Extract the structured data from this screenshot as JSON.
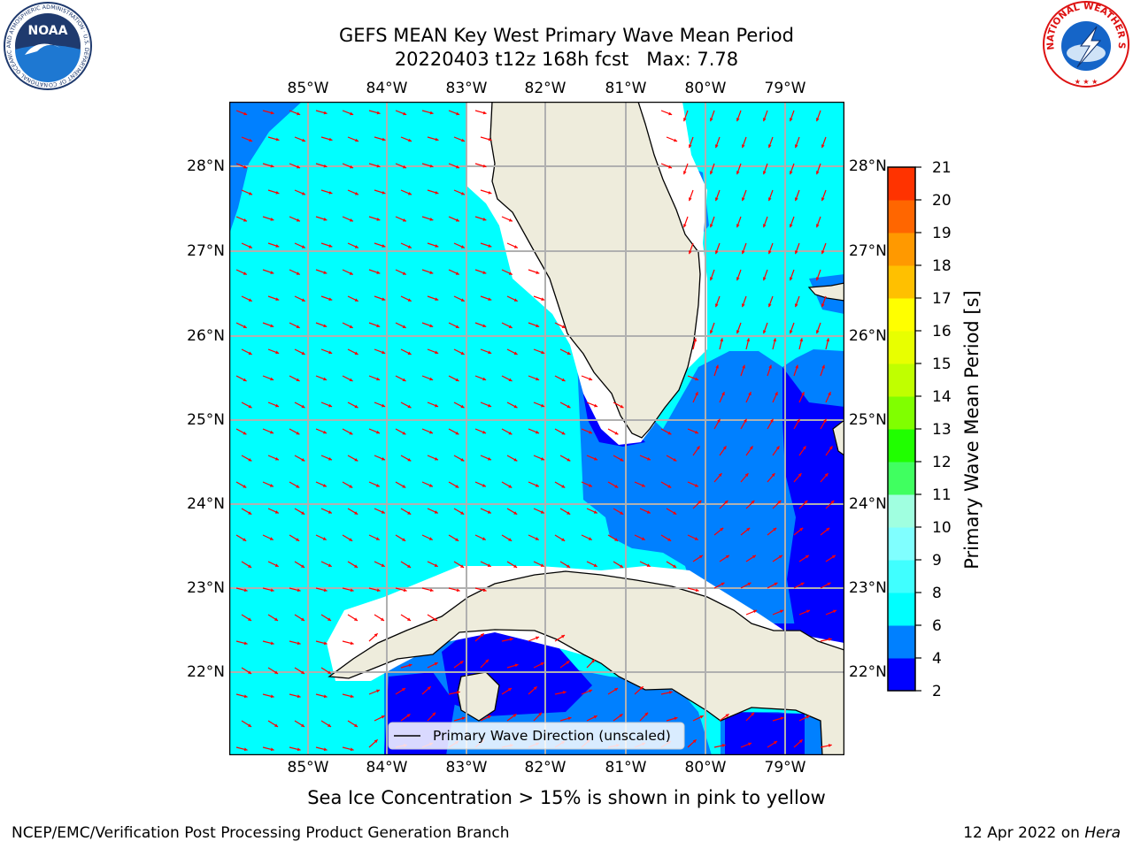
{
  "header": {
    "title_line1": "GEFS MEAN Key West Primary Wave Mean Period",
    "title_line2": "20220403 t12z 168h fcst   Max: 7.78"
  },
  "logos": {
    "left": "noaa-logo",
    "left_text": "NOAA",
    "left_ring_text": "NATIONAL OCEANIC AND ATMOSPHERIC ADMINISTRATION · U.S. DEPARTMENT OF COMMERCE",
    "right": "nws-logo",
    "right_ring_text": "NATIONAL WEATHER SERVICE"
  },
  "map": {
    "lon_labels": [
      "85°W",
      "84°W",
      "83°W",
      "82°W",
      "81°W",
      "80°W",
      "79°W"
    ],
    "lat_labels": [
      "28°N",
      "27°N",
      "26°N",
      "25°N",
      "24°N",
      "23°N",
      "22°N"
    ],
    "legend_label": "Primary Wave Direction (unscaled)",
    "colors": {
      "ocean_light": "#00ffff",
      "ocean_mid": "#0080ff",
      "ocean_deep": "#0000ff",
      "land": "#eeecdc",
      "arrows": "#ff0000",
      "grid": "#b0b0b0"
    }
  },
  "colorbar": {
    "label": "Primary Wave Mean Period [s]",
    "ticks": [
      "2",
      "4",
      "6",
      "8",
      "9",
      "10",
      "11",
      "12",
      "13",
      "14",
      "15",
      "16",
      "17",
      "18",
      "19",
      "20",
      "21"
    ],
    "colors": [
      "#0000ff",
      "#0080ff",
      "#00ffff",
      "#40ffff",
      "#80ffff",
      "#a0ffe0",
      "#40ff60",
      "#20ff00",
      "#80ff00",
      "#c0ff00",
      "#e8ff00",
      "#ffff00",
      "#ffc000",
      "#ff9900",
      "#ff6600",
      "#ff3300",
      "#ff0000"
    ]
  },
  "footer": {
    "note": "Sea Ice Concentration > 15% is shown in pink to yellow",
    "credit": "NCEP/EMC/Verification Post Processing Product Generation Branch",
    "date": "12 Apr 2022 on ",
    "machine": "Hera"
  }
}
